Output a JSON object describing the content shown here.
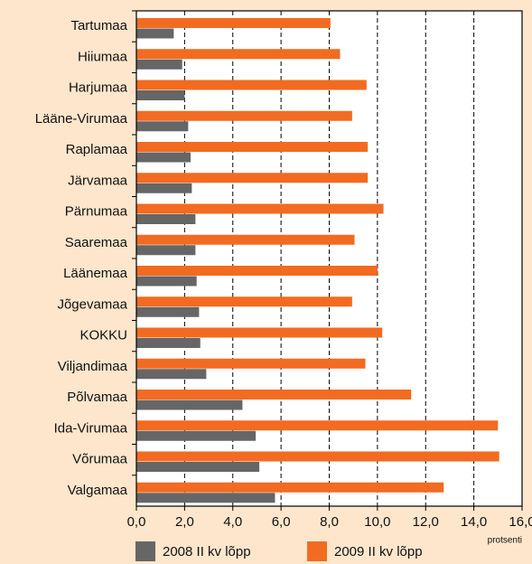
{
  "chart_data": {
    "type": "hbar",
    "categories": [
      "Tartumaa",
      "Hiiumaa",
      "Harjumaa",
      "Lääne-Virumaa",
      "Raplamaa",
      "Järvamaa",
      "Pärnumaa",
      "Saaremaa",
      "Läänemaa",
      "Jõgevamaa",
      "KOKKU",
      "Viljandimaa",
      "Põlvamaa",
      "Ida-Virumaa",
      "Võrumaa",
      "Valgamaa"
    ],
    "series": [
      {
        "name": "2009 II kv lõpp",
        "color": "#f26b21",
        "values": [
          8.05,
          8.45,
          9.55,
          8.95,
          9.6,
          9.6,
          10.25,
          9.05,
          10.0,
          8.95,
          10.2,
          9.5,
          11.4,
          15.0,
          15.05,
          12.75
        ]
      },
      {
        "name": "2008 II kv lõpp",
        "color": "#666666",
        "values": [
          1.55,
          1.9,
          2.0,
          2.15,
          2.25,
          2.3,
          2.45,
          2.45,
          2.5,
          2.6,
          2.65,
          2.9,
          4.4,
          4.95,
          5.1,
          5.75
        ]
      }
    ],
    "xlabel": "protsenti",
    "xlim": [
      0,
      16
    ],
    "xticks": [
      {
        "value": 0,
        "label": "0,0"
      },
      {
        "value": 2,
        "label": "2,0"
      },
      {
        "value": 4,
        "label": "4,0"
      },
      {
        "value": 6,
        "label": "6,0"
      },
      {
        "value": 8,
        "label": "8,0"
      },
      {
        "value": 10,
        "label": "10,0"
      },
      {
        "value": 12,
        "label": "12,0"
      },
      {
        "value": 14,
        "label": "14,0"
      },
      {
        "value": 16,
        "label": "16,0"
      }
    ],
    "grid": true
  }
}
